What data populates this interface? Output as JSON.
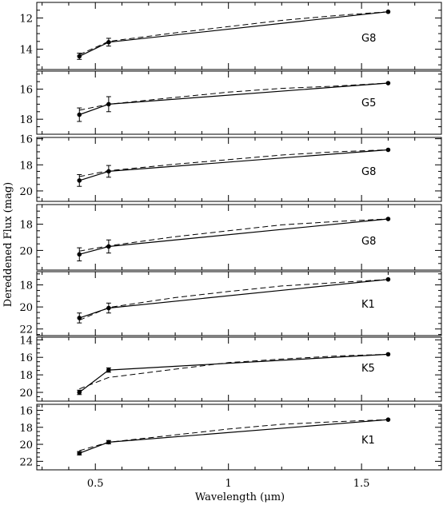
{
  "figure": {
    "xlabel": "Wavelength (μm)",
    "ylabel": "Dereddened Flux (mag)"
  },
  "chart_data": {
    "type": "line",
    "xlabel": "Wavelength (μm)",
    "ylabel": "Dereddened Flux (mag)",
    "xlim": [
      0.28,
      1.8
    ],
    "x_ticks": [
      0.5,
      1,
      1.5
    ],
    "x_tick_labels": [
      "0.5",
      "1",
      "1.5"
    ],
    "y_inverted": true,
    "grid": false,
    "panels": [
      {
        "label": "G8",
        "ylim": [
          15.3,
          11.0
        ],
        "y_ticks": [
          12,
          14
        ],
        "observed": [
          {
            "x": 0.44,
            "y": 14.45,
            "err": 0.2
          },
          {
            "x": 0.55,
            "y": 13.55,
            "err": 0.25
          },
          {
            "x": 1.6,
            "y": 11.6
          }
        ],
        "model": [
          {
            "x": 0.44,
            "y": 14.35
          },
          {
            "x": 0.55,
            "y": 13.5
          },
          {
            "x": 0.8,
            "y": 12.95
          },
          {
            "x": 1.0,
            "y": 12.55
          },
          {
            "x": 1.2,
            "y": 12.15
          },
          {
            "x": 1.4,
            "y": 11.85
          },
          {
            "x": 1.6,
            "y": 11.6
          }
        ]
      },
      {
        "label": "G5",
        "ylim": [
          19.0,
          14.8
        ],
        "y_ticks": [
          16,
          18
        ],
        "observed": [
          {
            "x": 0.44,
            "y": 17.7,
            "err": 0.45
          },
          {
            "x": 0.55,
            "y": 17.0,
            "err": 0.5
          },
          {
            "x": 1.6,
            "y": 15.6
          }
        ],
        "model": [
          {
            "x": 0.44,
            "y": 17.4
          },
          {
            "x": 0.55,
            "y": 17.0
          },
          {
            "x": 0.8,
            "y": 16.55
          },
          {
            "x": 1.0,
            "y": 16.2
          },
          {
            "x": 1.2,
            "y": 15.95
          },
          {
            "x": 1.4,
            "y": 15.8
          },
          {
            "x": 1.6,
            "y": 15.6
          }
        ]
      },
      {
        "label": "G8",
        "ylim": [
          20.8,
          15.9
        ],
        "y_ticks": [
          16,
          18,
          20
        ],
        "observed": [
          {
            "x": 0.44,
            "y": 19.2,
            "err": 0.45
          },
          {
            "x": 0.55,
            "y": 18.5,
            "err": 0.45
          },
          {
            "x": 1.6,
            "y": 16.85
          }
        ],
        "model": [
          {
            "x": 0.44,
            "y": 18.9
          },
          {
            "x": 0.55,
            "y": 18.45
          },
          {
            "x": 0.8,
            "y": 17.95
          },
          {
            "x": 1.0,
            "y": 17.6
          },
          {
            "x": 1.2,
            "y": 17.25
          },
          {
            "x": 1.4,
            "y": 17.0
          },
          {
            "x": 1.6,
            "y": 16.85
          }
        ]
      },
      {
        "label": "G8",
        "ylim": [
          21.5,
          16.5
        ],
        "y_ticks": [
          18,
          20
        ],
        "observed": [
          {
            "x": 0.44,
            "y": 20.3,
            "err": 0.5
          },
          {
            "x": 0.55,
            "y": 19.7,
            "err": 0.5
          },
          {
            "x": 1.6,
            "y": 17.6
          }
        ],
        "model": [
          {
            "x": 0.44,
            "y": 20.05
          },
          {
            "x": 0.55,
            "y": 19.65
          },
          {
            "x": 0.8,
            "y": 18.95
          },
          {
            "x": 1.0,
            "y": 18.5
          },
          {
            "x": 1.2,
            "y": 18.05
          },
          {
            "x": 1.4,
            "y": 17.8
          },
          {
            "x": 1.6,
            "y": 17.6
          }
        ]
      },
      {
        "label": "K1",
        "ylim": [
          22.6,
          16.8
        ],
        "y_ticks": [
          18,
          20,
          22
        ],
        "observed": [
          {
            "x": 0.44,
            "y": 21.0,
            "err": 0.45
          },
          {
            "x": 0.55,
            "y": 20.1,
            "err": 0.45
          },
          {
            "x": 1.6,
            "y": 17.5
          }
        ],
        "model": [
          {
            "x": 0.44,
            "y": 21.2
          },
          {
            "x": 0.55,
            "y": 20.05
          },
          {
            "x": 0.8,
            "y": 19.15
          },
          {
            "x": 1.0,
            "y": 18.6
          },
          {
            "x": 1.2,
            "y": 18.1
          },
          {
            "x": 1.4,
            "y": 17.8
          },
          {
            "x": 1.6,
            "y": 17.5
          }
        ]
      },
      {
        "label": "K5",
        "ylim": [
          21.0,
          13.7
        ],
        "y_ticks": [
          14,
          16,
          18,
          20
        ],
        "observed": [
          {
            "x": 0.44,
            "y": 20.0,
            "err": 0.25
          },
          {
            "x": 0.55,
            "y": 17.45,
            "err": 0.25
          },
          {
            "x": 1.6,
            "y": 15.65
          }
        ],
        "model": [
          {
            "x": 0.44,
            "y": 19.6
          },
          {
            "x": 0.55,
            "y": 18.3
          },
          {
            "x": 0.8,
            "y": 17.35
          },
          {
            "x": 1.0,
            "y": 16.6
          },
          {
            "x": 1.2,
            "y": 16.2
          },
          {
            "x": 1.4,
            "y": 15.85
          },
          {
            "x": 1.6,
            "y": 15.65
          }
        ]
      },
      {
        "label": "K1",
        "ylim": [
          23.0,
          15.3
        ],
        "y_ticks": [
          16,
          18,
          20,
          22
        ],
        "observed": [
          {
            "x": 0.44,
            "y": 21.05,
            "err": 0.2
          },
          {
            "x": 0.55,
            "y": 19.75,
            "err": 0.2
          },
          {
            "x": 1.6,
            "y": 17.1
          }
        ],
        "model": [
          {
            "x": 0.44,
            "y": 20.75
          },
          {
            "x": 0.55,
            "y": 19.75
          },
          {
            "x": 0.8,
            "y": 18.9
          },
          {
            "x": 1.0,
            "y": 18.2
          },
          {
            "x": 1.2,
            "y": 17.65
          },
          {
            "x": 1.4,
            "y": 17.35
          },
          {
            "x": 1.6,
            "y": 17.1
          }
        ]
      }
    ]
  }
}
